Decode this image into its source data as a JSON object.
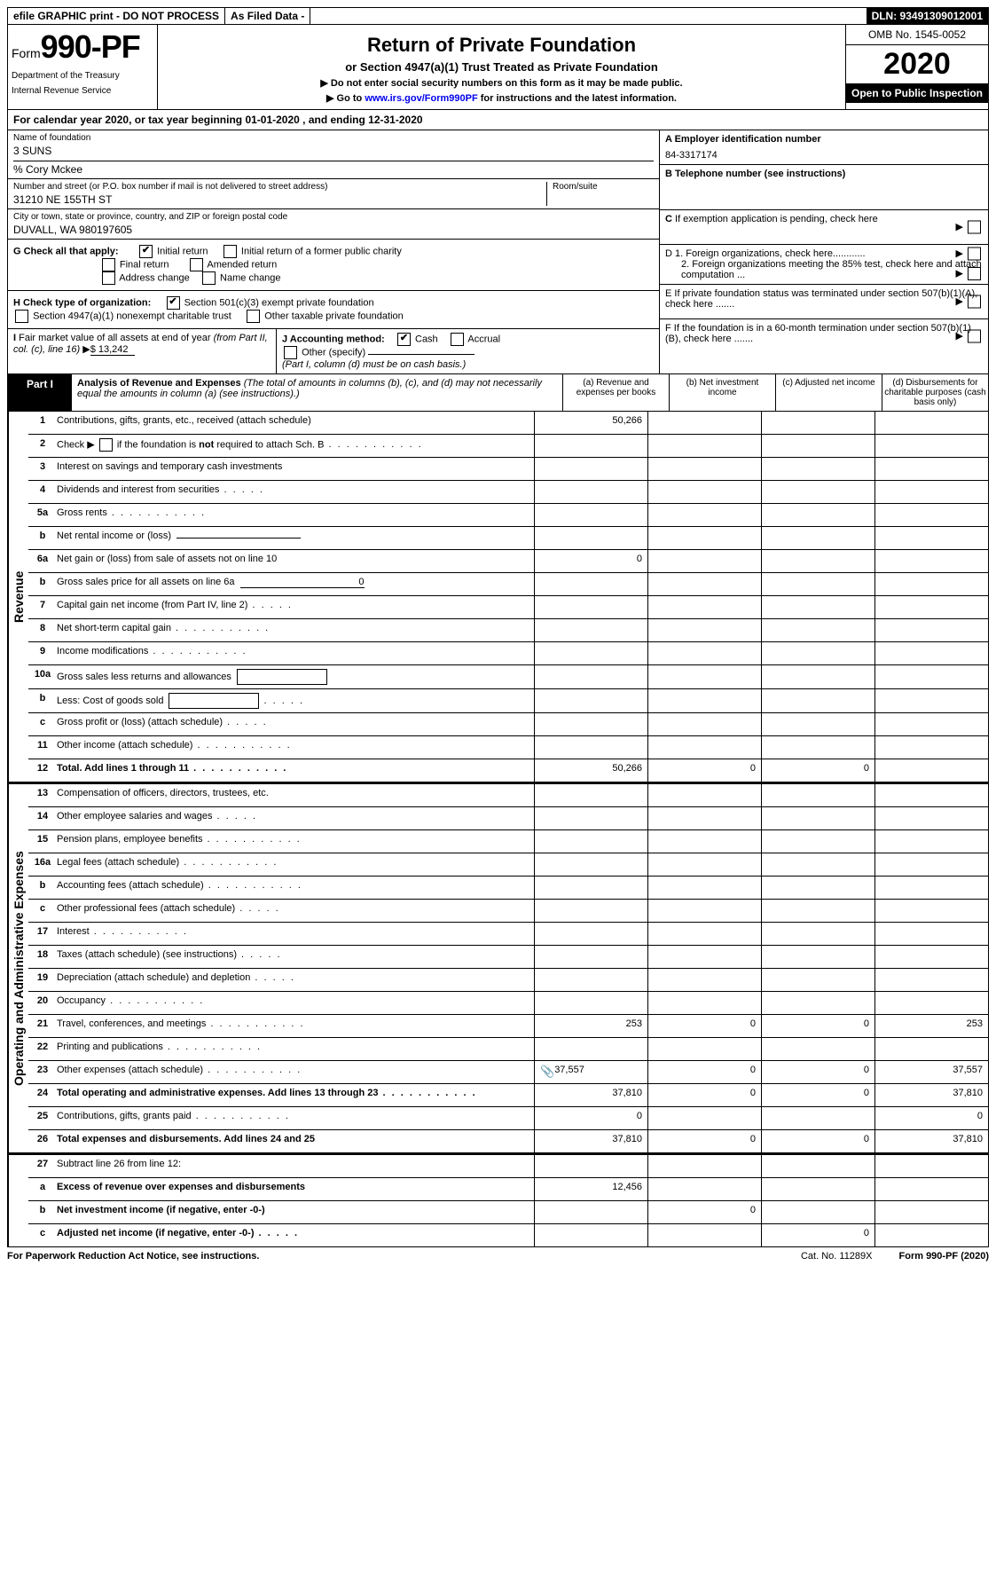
{
  "top": {
    "efile": "efile GRAPHIC print - DO NOT PROCESS",
    "asfiled": "As Filed Data -",
    "dln": "DLN: 93491309012001"
  },
  "header": {
    "form_prefix": "Form",
    "form_num": "990-PF",
    "dept1": "Department of the Treasury",
    "dept2": "Internal Revenue Service",
    "title": "Return of Private Foundation",
    "subtitle": "or Section 4947(a)(1) Trust Treated as Private Foundation",
    "instr1": "▶ Do not enter social security numbers on this form as it may be made public.",
    "instr2_pre": "▶ Go to ",
    "instr2_link": "www.irs.gov/Form990PF",
    "instr2_post": " for instructions and the latest information.",
    "omb": "OMB No. 1545-0052",
    "year": "2020",
    "open": "Open to Public Inspection"
  },
  "calyear": "For calendar year 2020, or tax year beginning 01-01-2020                           , and ending 12-31-2020",
  "info": {
    "name_label": "Name of foundation",
    "name": "3 SUNS",
    "co": "% Cory Mckee",
    "addr_label": "Number and street (or P.O. box number if mail is not delivered to street address)",
    "addr": "31210 NE 155TH ST",
    "room_label": "Room/suite",
    "city_label": "City or town, state or province, country, and ZIP or foreign postal code",
    "city": "DUVALL, WA  980197605",
    "g_label": "G Check all that apply:",
    "g_initial": "Initial return",
    "g_initial_former": "Initial return of a former public charity",
    "g_final": "Final return",
    "g_amended": "Amended return",
    "g_addr": "Address change",
    "g_name": "Name change",
    "h_label": "H Check type of organization:",
    "h_501": "Section 501(c)(3) exempt private foundation",
    "h_4947": "Section 4947(a)(1) nonexempt charitable trust",
    "h_other": "Other taxable private foundation",
    "i_label": "I Fair market value of all assets at end of year (from Part II, col. (c), line 16) ▶",
    "i_val": "$  13,242",
    "j_label": "J Accounting method:",
    "j_cash": "Cash",
    "j_accrual": "Accrual",
    "j_other": "Other (specify)",
    "j_note": "(Part I, column (d) must be on cash basis.)",
    "a_label": "A Employer identification number",
    "a_val": "84-3317174",
    "b_label": "B Telephone number (see instructions)",
    "c_label": "C If exemption application is pending, check here",
    "d1": "D 1. Foreign organizations, check here............",
    "d2": "2. Foreign organizations meeting the 85% test, check here and attach computation ...",
    "e_label": "E  If private foundation status was terminated under section 507(b)(1)(A), check here .......",
    "f_label": "F  If the foundation is in a 60-month termination under section 507(b)(1)(B), check here ......."
  },
  "part1": {
    "label": "Part I",
    "title": "Analysis of Revenue and Expenses",
    "note": " (The total of amounts in columns (b), (c), and (d) may not necessarily equal the amounts in column (a) (see instructions).)",
    "col_a": "(a)  Revenue and expenses per books",
    "col_b": "(b)  Net investment income",
    "col_c": "(c)  Adjusted net income",
    "col_d": "(d)  Disbursements for charitable purposes (cash basis only)"
  },
  "side_revenue": "Revenue",
  "side_expenses": "Operating and Administrative Expenses",
  "rows": [
    {
      "n": "1",
      "t": "Contributions, gifts, grants, etc., received (attach schedule)",
      "a": "50,266",
      "b": "",
      "c": "",
      "d": ""
    },
    {
      "n": "2",
      "t": "Check ▶ ☐ if the foundation is not required to attach Sch. B",
      "dots": true,
      "nohtml": true,
      "a": "",
      "b": "",
      "c": "",
      "d": ""
    },
    {
      "n": "3",
      "t": "Interest on savings and temporary cash investments",
      "a": "",
      "b": "",
      "c": "",
      "d": ""
    },
    {
      "n": "4",
      "t": "Dividends and interest from securities",
      "dots": "short",
      "a": "",
      "b": "",
      "c": "",
      "d": ""
    },
    {
      "n": "5a",
      "t": "Gross rents",
      "dots": true,
      "a": "",
      "b": "",
      "c": "",
      "d": ""
    },
    {
      "n": "b",
      "t": "Net rental income or (loss)",
      "underline": true,
      "a": "",
      "b": "",
      "c": "",
      "d": ""
    },
    {
      "n": "6a",
      "t": "Net gain or (loss) from sale of assets not on line 10",
      "a": "0",
      "b": "",
      "c": "",
      "d": ""
    },
    {
      "n": "b",
      "t": "Gross sales price for all assets on line 6a",
      "underline": true,
      "uval": "0",
      "a": "",
      "b": "",
      "c": "",
      "d": ""
    },
    {
      "n": "7",
      "t": "Capital gain net income (from Part IV, line 2)",
      "dots": "short",
      "a": "",
      "b": "",
      "c": "",
      "d": ""
    },
    {
      "n": "8",
      "t": "Net short-term capital gain",
      "dots": true,
      "a": "",
      "b": "",
      "c": "",
      "d": ""
    },
    {
      "n": "9",
      "t": "Income modifications",
      "dots": true,
      "a": "",
      "b": "",
      "c": "",
      "d": ""
    },
    {
      "n": "10a",
      "t": "Gross sales less returns and allowances",
      "box": true,
      "a": "",
      "b": "",
      "c": "",
      "d": ""
    },
    {
      "n": "b",
      "t": "Less: Cost of goods sold",
      "dots": "short",
      "box": true,
      "a": "",
      "b": "",
      "c": "",
      "d": ""
    },
    {
      "n": "c",
      "t": "Gross profit or (loss) (attach schedule)",
      "dots": "short",
      "a": "",
      "b": "",
      "c": "",
      "d": ""
    },
    {
      "n": "11",
      "t": "Other income (attach schedule)",
      "dots": true,
      "a": "",
      "b": "",
      "c": "",
      "d": ""
    },
    {
      "n": "12",
      "t": "Total. Add lines 1 through 11",
      "bold": true,
      "dots": true,
      "a": "50,266",
      "b": "0",
      "c": "0",
      "d": ""
    }
  ],
  "exp_rows": [
    {
      "n": "13",
      "t": "Compensation of officers, directors, trustees, etc.",
      "a": "",
      "b": "",
      "c": "",
      "d": ""
    },
    {
      "n": "14",
      "t": "Other employee salaries and wages",
      "dots": "short",
      "a": "",
      "b": "",
      "c": "",
      "d": ""
    },
    {
      "n": "15",
      "t": "Pension plans, employee benefits",
      "dots": true,
      "a": "",
      "b": "",
      "c": "",
      "d": ""
    },
    {
      "n": "16a",
      "t": "Legal fees (attach schedule)",
      "dots": true,
      "a": "",
      "b": "",
      "c": "",
      "d": ""
    },
    {
      "n": "b",
      "t": "Accounting fees (attach schedule)",
      "dots": true,
      "a": "",
      "b": "",
      "c": "",
      "d": ""
    },
    {
      "n": "c",
      "t": "Other professional fees (attach schedule)",
      "dots": "short",
      "a": "",
      "b": "",
      "c": "",
      "d": ""
    },
    {
      "n": "17",
      "t": "Interest",
      "dots": true,
      "a": "",
      "b": "",
      "c": "",
      "d": ""
    },
    {
      "n": "18",
      "t": "Taxes (attach schedule) (see instructions)",
      "dots": "short",
      "a": "",
      "b": "",
      "c": "",
      "d": ""
    },
    {
      "n": "19",
      "t": "Depreciation (attach schedule) and depletion",
      "dots": "short",
      "a": "",
      "b": "",
      "c": "",
      "d": ""
    },
    {
      "n": "20",
      "t": "Occupancy",
      "dots": true,
      "a": "",
      "b": "",
      "c": "",
      "d": ""
    },
    {
      "n": "21",
      "t": "Travel, conferences, and meetings",
      "dots": true,
      "a": "253",
      "b": "0",
      "c": "0",
      "d": "253"
    },
    {
      "n": "22",
      "t": "Printing and publications",
      "dots": true,
      "a": "",
      "b": "",
      "c": "",
      "d": ""
    },
    {
      "n": "23",
      "t": "Other expenses (attach schedule)",
      "dots": true,
      "icon": true,
      "a": "37,557",
      "b": "0",
      "c": "0",
      "d": "37,557"
    },
    {
      "n": "24",
      "t": "Total operating and administrative expenses. Add lines 13 through 23",
      "bold": true,
      "dots": true,
      "a": "37,810",
      "b": "0",
      "c": "0",
      "d": "37,810"
    },
    {
      "n": "25",
      "t": "Contributions, gifts, grants paid",
      "dots": true,
      "a": "0",
      "b": "",
      "c": "",
      "d": "0"
    },
    {
      "n": "26",
      "t": "Total expenses and disbursements. Add lines 24 and 25",
      "bold": true,
      "a": "37,810",
      "b": "0",
      "c": "0",
      "d": "37,810"
    }
  ],
  "bottom_rows": [
    {
      "n": "27",
      "t": "Subtract line 26 from line 12:",
      "a": "",
      "b": "",
      "c": "",
      "d": ""
    },
    {
      "n": "a",
      "t": "Excess of revenue over expenses and disbursements",
      "bold": true,
      "a": "12,456",
      "b": "",
      "c": "",
      "d": ""
    },
    {
      "n": "b",
      "t": "Net investment income (if negative, enter -0-)",
      "bold": true,
      "a": "",
      "b": "0",
      "c": "",
      "d": ""
    },
    {
      "n": "c",
      "t": "Adjusted net income (if negative, enter -0-)",
      "bold": true,
      "dots": "short",
      "a": "",
      "b": "",
      "c": "0",
      "d": ""
    }
  ],
  "footer": {
    "left": "For Paperwork Reduction Act Notice, see instructions.",
    "center": "Cat. No. 11289X",
    "right": "Form 990-PF (2020)"
  }
}
